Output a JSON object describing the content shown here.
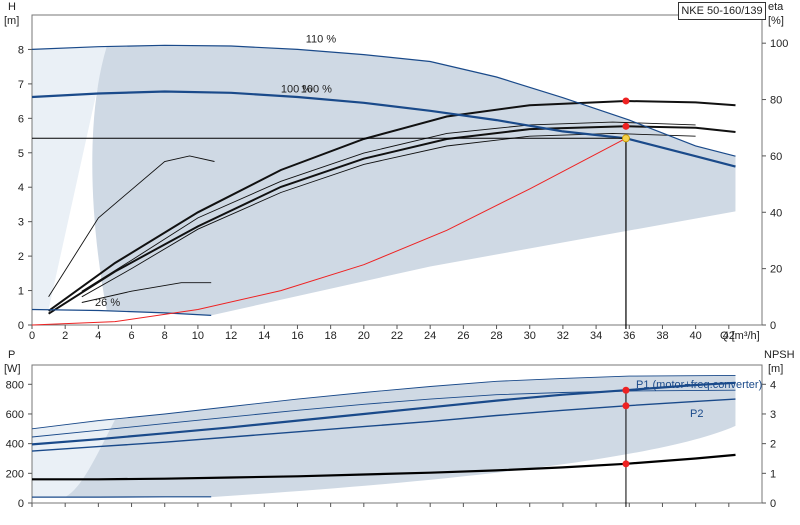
{
  "model": "NKE 50-160/139",
  "chart_data": [
    {
      "type": "line",
      "panel": "head",
      "ylabel": "H",
      "yunit": "[m]",
      "y2label": "eta",
      "y2unit": "[%]",
      "xlabel": "Q",
      "xunit": "[m³/h]",
      "xlim": [
        0,
        44
      ],
      "xticks": [
        0,
        2,
        4,
        6,
        8,
        10,
        12,
        14,
        16,
        18,
        20,
        22,
        24,
        26,
        28,
        30,
        32,
        34,
        36,
        38,
        40,
        42
      ],
      "ylim": [
        0,
        9
      ],
      "yticks": [
        0,
        1,
        2,
        3,
        4,
        5,
        6,
        7,
        8
      ],
      "y2lim": [
        0,
        110
      ],
      "y2ticks": [
        0,
        20,
        40,
        60,
        80,
        100
      ],
      "curve_labels": [
        "110 %",
        "100 %",
        "100 %",
        "26 %"
      ],
      "series": [
        {
          "role": "head-110",
          "x": [
            0,
            4,
            8,
            12,
            16,
            20,
            24,
            28,
            32,
            36,
            40,
            42.4
          ],
          "y": [
            8.0,
            8.08,
            8.12,
            8.1,
            8.0,
            7.85,
            7.65,
            7.2,
            6.6,
            5.95,
            5.2,
            4.9
          ]
        },
        {
          "role": "head-100",
          "x": [
            0,
            4,
            8,
            12,
            16,
            20,
            24,
            28,
            32,
            35.8,
            40,
            42.4
          ],
          "y": [
            6.62,
            6.72,
            6.78,
            6.74,
            6.62,
            6.45,
            6.22,
            5.95,
            5.62,
            5.42,
            4.9,
            4.6
          ]
        },
        {
          "role": "head-26",
          "x": [
            0,
            4,
            8,
            10.8
          ],
          "y": [
            0.45,
            0.42,
            0.35,
            0.28
          ]
        },
        {
          "role": "eta-1",
          "x": [
            1,
            5,
            10,
            15,
            20,
            25,
            30,
            35.8,
            40,
            42.4
          ],
          "y": [
            5,
            22,
            40,
            55,
            66,
            74,
            78,
            79.5,
            79,
            78
          ]
        },
        {
          "role": "eta-2",
          "x": [
            1,
            5,
            10,
            15,
            20,
            25,
            30,
            35.8,
            40,
            42.4
          ],
          "y": [
            4,
            19,
            35,
            49,
            59,
            66,
            69.5,
            70.5,
            70,
            68.5
          ]
        },
        {
          "role": "eta-3",
          "x": [
            3,
            6,
            10,
            15,
            20,
            25,
            30,
            35,
            40
          ],
          "y": [
            12,
            23,
            38,
            51,
            61,
            68,
            71,
            72,
            71
          ]
        },
        {
          "role": "eta-4",
          "x": [
            3,
            6,
            10,
            15,
            20,
            25,
            30,
            35,
            40
          ],
          "y": [
            10,
            20,
            34,
            47,
            57,
            63.5,
            67,
            68,
            67
          ]
        },
        {
          "role": "eta-5",
          "x": [
            1,
            4,
            8,
            9.5,
            11
          ],
          "y": [
            10,
            38,
            58,
            60,
            58
          ]
        },
        {
          "role": "eta-6",
          "x": [
            3,
            6,
            9,
            10.8
          ],
          "y": [
            8,
            12,
            15,
            15
          ]
        }
      ],
      "system_curve": {
        "x": [
          0,
          5,
          10,
          15,
          20,
          25,
          30,
          35.8
        ],
        "y": [
          0,
          0.1,
          0.45,
          1.0,
          1.75,
          2.75,
          3.95,
          5.42
        ]
      },
      "duty_point": {
        "x": 35.8,
        "y": 5.42
      },
      "eta_points": [
        {
          "x": 35.8,
          "y": 79.5
        },
        {
          "x": 35.8,
          "y": 70.5
        }
      ]
    },
    {
      "type": "line",
      "panel": "power",
      "ylabel": "P",
      "yunit": "[W]",
      "y2label": "NPSH",
      "y2unit": "[m]",
      "xlim": [
        0,
        44
      ],
      "ylim": [
        0,
        930
      ],
      "yticks": [
        0,
        200,
        400,
        600,
        800
      ],
      "y2lim": [
        0,
        4.65
      ],
      "y2ticks": [
        0,
        1,
        2,
        3,
        4
      ],
      "series": [
        {
          "name": "P1 (motor+freq.converter)",
          "x": [
            0,
            4,
            8,
            12,
            16,
            20,
            24,
            28,
            32,
            35.8,
            40,
            42.4
          ],
          "y": [
            395,
            430,
            470,
            510,
            555,
            600,
            645,
            690,
            730,
            760,
            795,
            810
          ]
        },
        {
          "name": "P2",
          "x": [
            0,
            4,
            8,
            12,
            16,
            20,
            24,
            28,
            32,
            35.8,
            40,
            42.4
          ],
          "y": [
            350,
            380,
            410,
            445,
            480,
            515,
            550,
            590,
            625,
            655,
            685,
            700
          ]
        },
        {
          "role": "P1-110",
          "x": [
            0,
            4,
            8,
            12,
            16,
            20,
            24,
            28,
            32,
            36,
            42.4
          ],
          "y": [
            500,
            555,
            600,
            650,
            700,
            745,
            785,
            820,
            840,
            855,
            860
          ]
        },
        {
          "role": "P2-110",
          "x": [
            0,
            4,
            8,
            12,
            16,
            20,
            24,
            28,
            32,
            36,
            42.4
          ],
          "y": [
            445,
            490,
            535,
            580,
            625,
            665,
            700,
            730,
            745,
            755,
            760
          ]
        },
        {
          "role": "P-26",
          "x": [
            0,
            4,
            8,
            10.8
          ],
          "y": [
            40,
            40,
            42,
            42
          ]
        },
        {
          "role": "NPSH",
          "x": [
            0,
            4,
            8,
            12,
            16,
            20,
            24,
            28,
            32,
            35.8,
            40,
            42.4
          ],
          "y": [
            0.8,
            0.8,
            0.82,
            0.86,
            0.9,
            0.96,
            1.02,
            1.1,
            1.2,
            1.32,
            1.5,
            1.62
          ]
        }
      ],
      "points": [
        {
          "series": "P1 (motor+freq.converter)",
          "x": 35.8,
          "y": 760
        },
        {
          "series": "P2",
          "x": 35.8,
          "y": 655
        },
        {
          "series": "NPSH",
          "x": 35.8,
          "y": 1.32
        }
      ]
    }
  ],
  "colors": {
    "area": "#cfd9e4",
    "area_light": "#eaf0f6",
    "curve": "#1a4a8a",
    "eta": "#111111",
    "system": "#ee2222",
    "point": "#ee2222",
    "duty": "#f5d24a",
    "legend_text": "#1a4a8a"
  }
}
